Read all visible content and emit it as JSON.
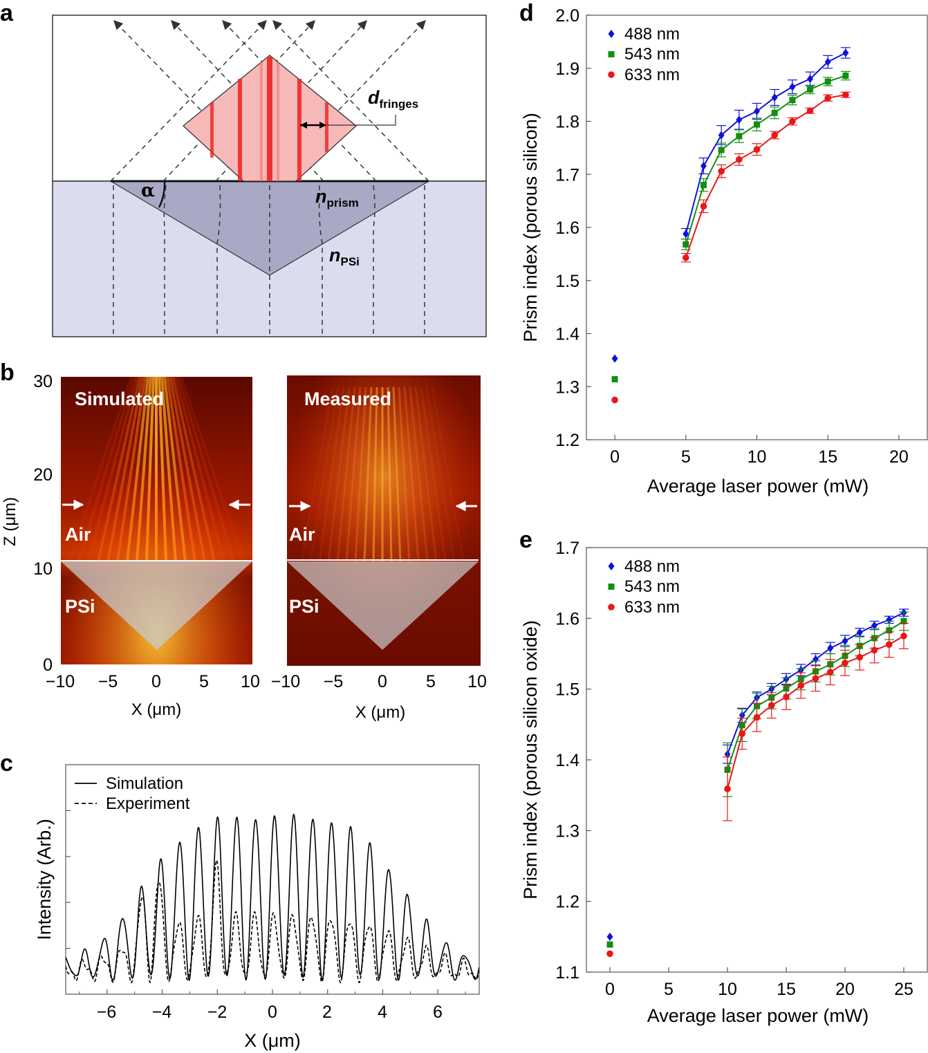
{
  "panels": {
    "a": "a",
    "b": "b",
    "c": "c",
    "d": "d",
    "e": "e"
  },
  "colors": {
    "blue": "#1010e0",
    "green": "#109010",
    "red": "#e81818",
    "prism_fill": "#a9a9c6",
    "psi_fill": "#dcdcef",
    "fringe_fill": "#f5b7b7"
  },
  "diagram": {
    "alpha": "α",
    "d_main": "d",
    "d_sub": "fringes",
    "n_prism_main": "n",
    "n_prism_sub": "prism",
    "n_psi_main": "n",
    "n_psi_sub": "PSi"
  },
  "images": {
    "left_title": "Simulated",
    "right_title": "Measured",
    "air": "Air",
    "psi": "PSi",
    "yticks": [
      "30",
      "20",
      "10",
      "0"
    ],
    "xticks": [
      "−10",
      "−5",
      "0",
      "5",
      "10"
    ],
    "ylabel": "Z (μm)",
    "xlabel": "X (μm)"
  },
  "chart_data": [
    {
      "id": "c",
      "type": "line",
      "xlabel": "X (μm)",
      "ylabel": "Intensity (Arb.)",
      "xlim": [
        -7.5,
        7.5
      ],
      "ylim": [
        0,
        1
      ],
      "xticks": [
        "−6",
        "−4",
        "−2",
        "0",
        "2",
        "4",
        "6"
      ],
      "series": [
        {
          "name": "Simulation",
          "style": "solid"
        },
        {
          "name": "Experiment",
          "style": "dashed"
        }
      ]
    },
    {
      "id": "d",
      "type": "line",
      "xlabel": "Average laser power (mW)",
      "ylabel": "Prism index (porous silicon)",
      "xlim": [
        -2,
        22
      ],
      "ylim": [
        1.2,
        2.0
      ],
      "xticks": [
        0,
        5,
        10,
        15,
        20
      ],
      "yticks": [
        1.2,
        1.3,
        1.4,
        1.5,
        1.6,
        1.7,
        1.8,
        1.9,
        2.0
      ],
      "series": [
        {
          "name": "488 nm",
          "color": "#1010e0",
          "marker": "diamond",
          "x": [
            0,
            5,
            6.25,
            7.5,
            8.75,
            10,
            11.25,
            12.5,
            13.75,
            15,
            16.25
          ],
          "y": [
            1.353,
            1.588,
            1.716,
            1.774,
            1.803,
            1.819,
            1.845,
            1.865,
            1.88,
            1.912,
            1.929
          ],
          "err": [
            0,
            0.01,
            0.015,
            0.018,
            0.018,
            0.015,
            0.015,
            0.013,
            0.013,
            0.012,
            0.01
          ]
        },
        {
          "name": "543 nm",
          "color": "#109010",
          "marker": "square",
          "x": [
            0,
            5,
            6.25,
            7.5,
            8.75,
            10,
            11.25,
            12.5,
            13.75,
            15,
            16.25
          ],
          "y": [
            1.314,
            1.568,
            1.68,
            1.746,
            1.772,
            1.794,
            1.816,
            1.84,
            1.86,
            1.875,
            1.886
          ],
          "err": [
            0,
            0.01,
            0.012,
            0.013,
            0.012,
            0.012,
            0.011,
            0.009,
            0.008,
            0.008,
            0.008
          ]
        },
        {
          "name": "633 nm",
          "color": "#e81818",
          "marker": "circle",
          "x": [
            0,
            5,
            6.25,
            7.5,
            8.75,
            10,
            11.25,
            12.5,
            13.75,
            15,
            16.25
          ],
          "y": [
            1.275,
            1.543,
            1.64,
            1.706,
            1.728,
            1.747,
            1.774,
            1.8,
            1.82,
            1.844,
            1.85
          ],
          "err": [
            0,
            0.008,
            0.012,
            0.012,
            0.011,
            0.011,
            0.007,
            0.007,
            0.005,
            0.006,
            0.005
          ]
        }
      ]
    },
    {
      "id": "e",
      "type": "line",
      "xlabel": "Average laser power (mW)",
      "ylabel": "Prism index (porous silicon oxide)",
      "xlim": [
        -2,
        27
      ],
      "ylim": [
        1.1,
        1.7
      ],
      "xticks": [
        0,
        5,
        10,
        15,
        20,
        25
      ],
      "yticks": [
        1.1,
        1.2,
        1.3,
        1.4,
        1.5,
        1.6,
        1.7
      ],
      "series": [
        {
          "name": "488 nm",
          "color": "#1010e0",
          "marker": "diamond",
          "x": [
            0,
            10,
            11.25,
            12.5,
            13.75,
            15,
            16.25,
            17.5,
            18.75,
            20,
            21.25,
            22.5,
            23.75,
            25
          ],
          "y": [
            1.15,
            1.408,
            1.463,
            1.488,
            1.5,
            1.514,
            1.527,
            1.542,
            1.558,
            1.568,
            1.58,
            1.59,
            1.598,
            1.608
          ],
          "err": [
            0,
            0.013,
            0.01,
            0.008,
            0.008,
            0.008,
            0.008,
            0.008,
            0.008,
            0.008,
            0.006,
            0.006,
            0.005,
            0.005
          ]
        },
        {
          "name": "543 nm",
          "color": "#109010",
          "marker": "square",
          "x": [
            0,
            10,
            11.25,
            12.5,
            13.75,
            15,
            16.25,
            17.5,
            18.75,
            20,
            21.25,
            22.5,
            23.75,
            25
          ],
          "y": [
            1.139,
            1.386,
            1.449,
            1.476,
            1.488,
            1.501,
            1.514,
            1.525,
            1.535,
            1.547,
            1.561,
            1.572,
            1.583,
            1.596
          ],
          "err": [
            0,
            0.038,
            0.023,
            0.018,
            0.016,
            0.015,
            0.015,
            0.015,
            0.015,
            0.015,
            0.014,
            0.014,
            0.013,
            0.013
          ]
        },
        {
          "name": "633 nm",
          "color": "#e81818",
          "marker": "circle",
          "x": [
            0,
            10,
            11.25,
            12.5,
            13.75,
            15,
            16.25,
            17.5,
            18.75,
            20,
            21.25,
            22.5,
            23.75,
            25
          ],
          "y": [
            1.126,
            1.359,
            1.437,
            1.46,
            1.477,
            1.489,
            1.505,
            1.515,
            1.524,
            1.537,
            1.545,
            1.555,
            1.563,
            1.575
          ],
          "err": [
            0,
            0.045,
            0.022,
            0.02,
            0.018,
            0.018,
            0.018,
            0.018,
            0.018,
            0.018,
            0.018,
            0.018,
            0.018,
            0.018
          ]
        }
      ]
    }
  ]
}
